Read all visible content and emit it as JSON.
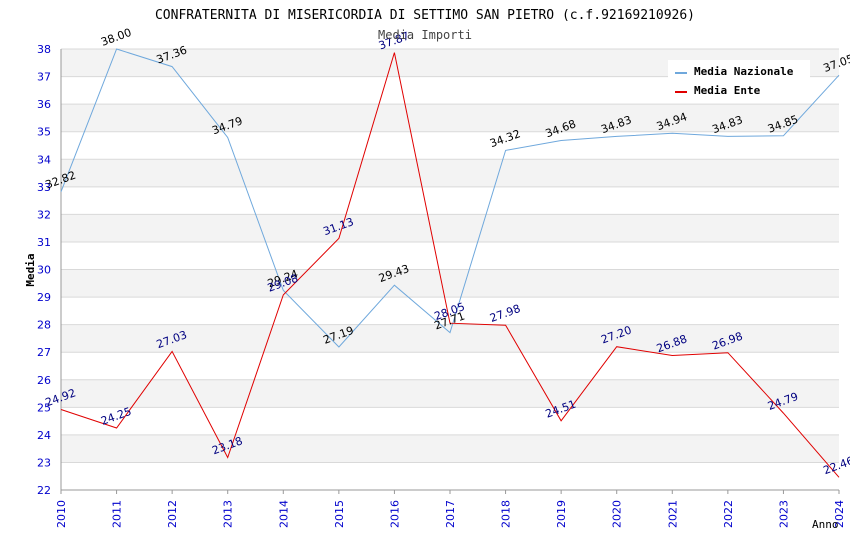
{
  "chart_data": {
    "type": "line",
    "title": "CONFRATERNITA DI MISERICORDIA DI SETTIMO SAN PIETRO (c.f.92169210926)",
    "subtitle": "Media Importi",
    "xlabel": "Anno",
    "ylabel": "Media",
    "ylim": [
      22,
      38
    ],
    "yticks": [
      22,
      23,
      24,
      25,
      26,
      27,
      28,
      29,
      30,
      31,
      32,
      33,
      34,
      35,
      36,
      37,
      38
    ],
    "x": [
      "2010",
      "2011",
      "2012",
      "2013",
      "2014",
      "2015",
      "2016",
      "2017",
      "2018",
      "2019",
      "2020",
      "2021",
      "2022",
      "2023",
      "2024"
    ],
    "legend_position": "top-right",
    "series": [
      {
        "name": "Media Nazionale",
        "color": "#6fa8dc",
        "label_color": "#000000",
        "values": [
          32.82,
          38.0,
          37.36,
          34.79,
          29.24,
          27.19,
          29.43,
          27.71,
          34.32,
          34.68,
          34.83,
          34.94,
          34.83,
          34.85,
          37.05
        ],
        "labels": [
          "32.82",
          "38.00",
          "37.36",
          "34.79",
          "29.24",
          "27.19",
          "29.43",
          "27.71",
          "34.32",
          "34.68",
          "34.83",
          "34.94",
          "34.83",
          "34.85",
          "37.05"
        ]
      },
      {
        "name": "Media Ente",
        "color": "#e00000",
        "label_color": "#000080",
        "values": [
          24.92,
          24.25,
          27.03,
          23.18,
          29.08,
          31.13,
          37.87,
          28.05,
          27.98,
          24.51,
          27.2,
          26.88,
          26.98,
          24.79,
          22.46
        ],
        "labels": [
          "24.92",
          "24.25",
          "27.03",
          "23.18",
          "29.08",
          "31.13",
          "37.87",
          "28.05",
          "27.98",
          "24.51",
          "27.20",
          "26.88",
          "26.98",
          "24.79",
          "22.46"
        ]
      }
    ]
  }
}
